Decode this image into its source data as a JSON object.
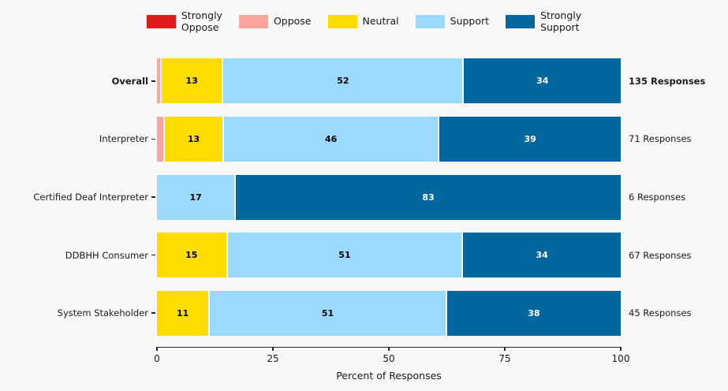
{
  "figure": {
    "background": "#f8f8f8"
  },
  "legend": {
    "items": [
      {
        "series": "Strongly Oppose",
        "label": "Strongly\nOppose",
        "color": "#dd1c1c"
      },
      {
        "series": "Oppose",
        "label": "Oppose",
        "color": "#fca49e"
      },
      {
        "series": "Neutral",
        "label": "Neutral",
        "color": "#ffdc00"
      },
      {
        "series": "Support",
        "label": "Support",
        "color": "#9cdafd"
      },
      {
        "series": "Strongly Support",
        "label": "Strongly\nSupport",
        "color": "#02679e"
      }
    ]
  },
  "chart_data": {
    "type": "bar",
    "orientation": "horizontal",
    "stacked": true,
    "title": "",
    "xlabel": "Percent of Responses",
    "ylabel": "",
    "xlim": [
      0,
      100
    ],
    "xticks": [
      "0",
      "25",
      "50",
      "75",
      "100"
    ],
    "grid": false,
    "legend_position": "top-center",
    "legend_entries": [
      "Strongly Oppose",
      "Oppose",
      "Neutral",
      "Support",
      "Strongly Support"
    ],
    "categories": [
      "Overall",
      "Interpreter",
      "Certified Deaf Interpreter",
      "DDBHH Consumer",
      "System Stakeholder"
    ],
    "rows": [
      {
        "category": "Overall",
        "bold": true,
        "annotation": "135 Responses",
        "segments": [
          {
            "series": "Oppose",
            "value": 0.7,
            "label": "",
            "color": "#fca49e",
            "label_color": "#000000"
          },
          {
            "series": "Neutral",
            "value": 13.3,
            "label": "13",
            "color": "#ffdc00",
            "label_color": "#000000"
          },
          {
            "series": "Support",
            "value": 51.9,
            "label": "52",
            "color": "#9cdafd",
            "label_color": "#000000"
          },
          {
            "series": "Strongly Support",
            "value": 34.1,
            "label": "34",
            "color": "#02679e",
            "label_color": "#ffffff"
          }
        ]
      },
      {
        "category": "Interpreter",
        "bold": false,
        "annotation": "71 Responses",
        "segments": [
          {
            "series": "Oppose",
            "value": 1.4,
            "label": "",
            "color": "#fca49e",
            "label_color": "#000000"
          },
          {
            "series": "Neutral",
            "value": 12.7,
            "label": "13",
            "color": "#ffdc00",
            "label_color": "#000000"
          },
          {
            "series": "Support",
            "value": 46.5,
            "label": "46",
            "color": "#9cdafd",
            "label_color": "#000000"
          },
          {
            "series": "Strongly Support",
            "value": 39.4,
            "label": "39",
            "color": "#02679e",
            "label_color": "#ffffff"
          }
        ]
      },
      {
        "category": "Certified Deaf Interpreter",
        "bold": false,
        "annotation": "6 Responses",
        "segments": [
          {
            "series": "Support",
            "value": 16.7,
            "label": "17",
            "color": "#9cdafd",
            "label_color": "#000000"
          },
          {
            "series": "Strongly Support",
            "value": 83.3,
            "label": "83",
            "color": "#02679e",
            "label_color": "#ffffff"
          }
        ]
      },
      {
        "category": "DDBHH Consumer",
        "bold": false,
        "annotation": "67 Responses",
        "segments": [
          {
            "series": "Neutral",
            "value": 14.9,
            "label": "15",
            "color": "#ffdc00",
            "label_color": "#000000"
          },
          {
            "series": "Support",
            "value": 50.8,
            "label": "51",
            "color": "#9cdafd",
            "label_color": "#000000"
          },
          {
            "series": "Strongly Support",
            "value": 34.3,
            "label": "34",
            "color": "#02679e",
            "label_color": "#ffffff"
          }
        ]
      },
      {
        "category": "System Stakeholder",
        "bold": false,
        "annotation": "45 Responses",
        "segments": [
          {
            "series": "Neutral",
            "value": 11.1,
            "label": "11",
            "color": "#ffdc00",
            "label_color": "#000000"
          },
          {
            "series": "Support",
            "value": 51.1,
            "label": "51",
            "color": "#9cdafd",
            "label_color": "#000000"
          },
          {
            "series": "Strongly Support",
            "value": 37.8,
            "label": "38",
            "color": "#02679e",
            "label_color": "#ffffff"
          }
        ]
      }
    ]
  }
}
